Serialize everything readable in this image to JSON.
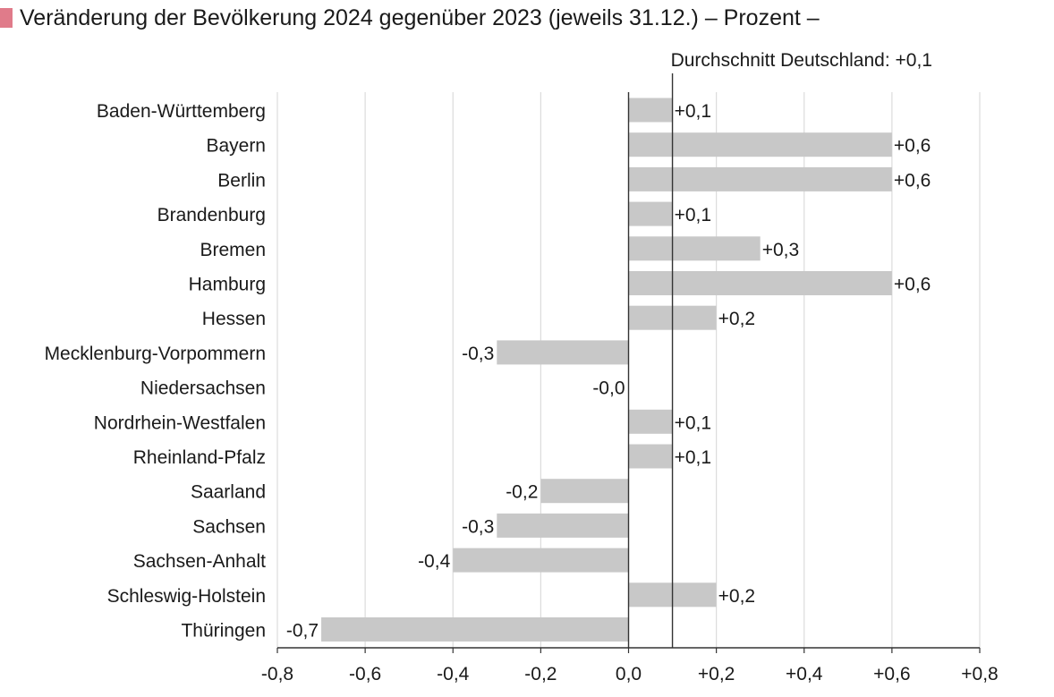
{
  "colors": {
    "bar": "#c8c8c8",
    "grid": "#dcdcdc",
    "axis": "#333333",
    "title_marker": "#e07b8a"
  },
  "chart_data": {
    "type": "bar",
    "orientation": "horizontal",
    "title": "Veränderung der Bevölkerung 2024 gegenüber 2023 (jeweils 31.12.) – Prozent –",
    "xlabel": "",
    "ylabel": "",
    "xlim": [
      -0.8,
      0.8
    ],
    "x_ticks": [
      -0.8,
      -0.6,
      -0.4,
      -0.2,
      0.0,
      0.2,
      0.4,
      0.6,
      0.8
    ],
    "x_tick_labels": [
      "-0,8",
      "-0,6",
      "-0,4",
      "-0,2",
      "0,0",
      "+0,2",
      "+0,4",
      "+0,6",
      "+0,8"
    ],
    "grid": "vertical",
    "reference_line": {
      "value": 0.1,
      "label": "Durchschnitt Deutschland: +0,1"
    },
    "categories": [
      "Baden-Württemberg",
      "Bayern",
      "Berlin",
      "Brandenburg",
      "Bremen",
      "Hamburg",
      "Hessen",
      "Mecklenburg-Vorpommern",
      "Niedersachsen",
      "Nordrhein-Westfalen",
      "Rheinland-Pfalz",
      "Saarland",
      "Sachsen",
      "Sachsen-Anhalt",
      "Schleswig-Holstein",
      "Thüringen"
    ],
    "values": [
      0.1,
      0.6,
      0.6,
      0.1,
      0.3,
      0.6,
      0.2,
      -0.3,
      -0.0,
      0.1,
      0.1,
      -0.2,
      -0.3,
      -0.4,
      0.2,
      -0.7
    ],
    "data_labels": [
      "+0,1",
      "+0,6",
      "+0,6",
      "+0,1",
      "+0,3",
      "+0,6",
      "+0,2",
      "-0,3",
      "-0,0",
      "+0,1",
      "+0,1",
      "-0,2",
      "-0,3",
      "-0,4",
      "+0,2",
      "-0,7"
    ]
  }
}
